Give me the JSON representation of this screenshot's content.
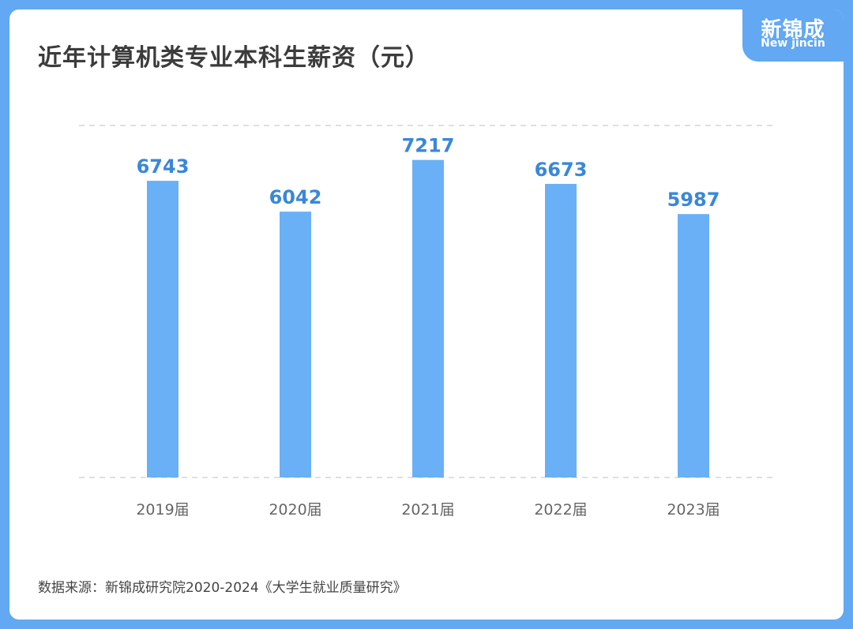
{
  "brand": {
    "name_cn": "新锦成",
    "name_en": "New jincin",
    "color": "#62a8f2"
  },
  "title": "近年计算机类专业本科生薪资（元）",
  "source": "数据来源：新锦成研究院2020-2024《大学生就业质量研究》",
  "chart_data": {
    "type": "bar",
    "title": "近年计算机类专业本科生薪资（元）",
    "categories": [
      "2019届",
      "2020届",
      "2021届",
      "2022届",
      "2023届"
    ],
    "values": [
      6743,
      6042,
      7217,
      6673,
      5987
    ],
    "ylim": [
      0,
      8000
    ],
    "bar_color": "#6ab0f6",
    "label_color": "#3a87d8",
    "grid": "dashed",
    "legend": "none"
  }
}
